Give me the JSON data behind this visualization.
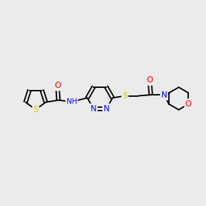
{
  "bg_color": "#ebebeb",
  "atom_colors": {
    "S": "#cccc00",
    "N": "#0000ff",
    "O": "#ff0000",
    "C": "#000000",
    "H": "#000000"
  },
  "bond_color": "#000000",
  "bond_lw": 1.4,
  "font_size_atom": 7.5,
  "fig_width": 3.0,
  "fig_height": 3.0,
  "dpi": 100,
  "xlim": [
    0,
    10
  ],
  "ylim": [
    0,
    10
  ]
}
